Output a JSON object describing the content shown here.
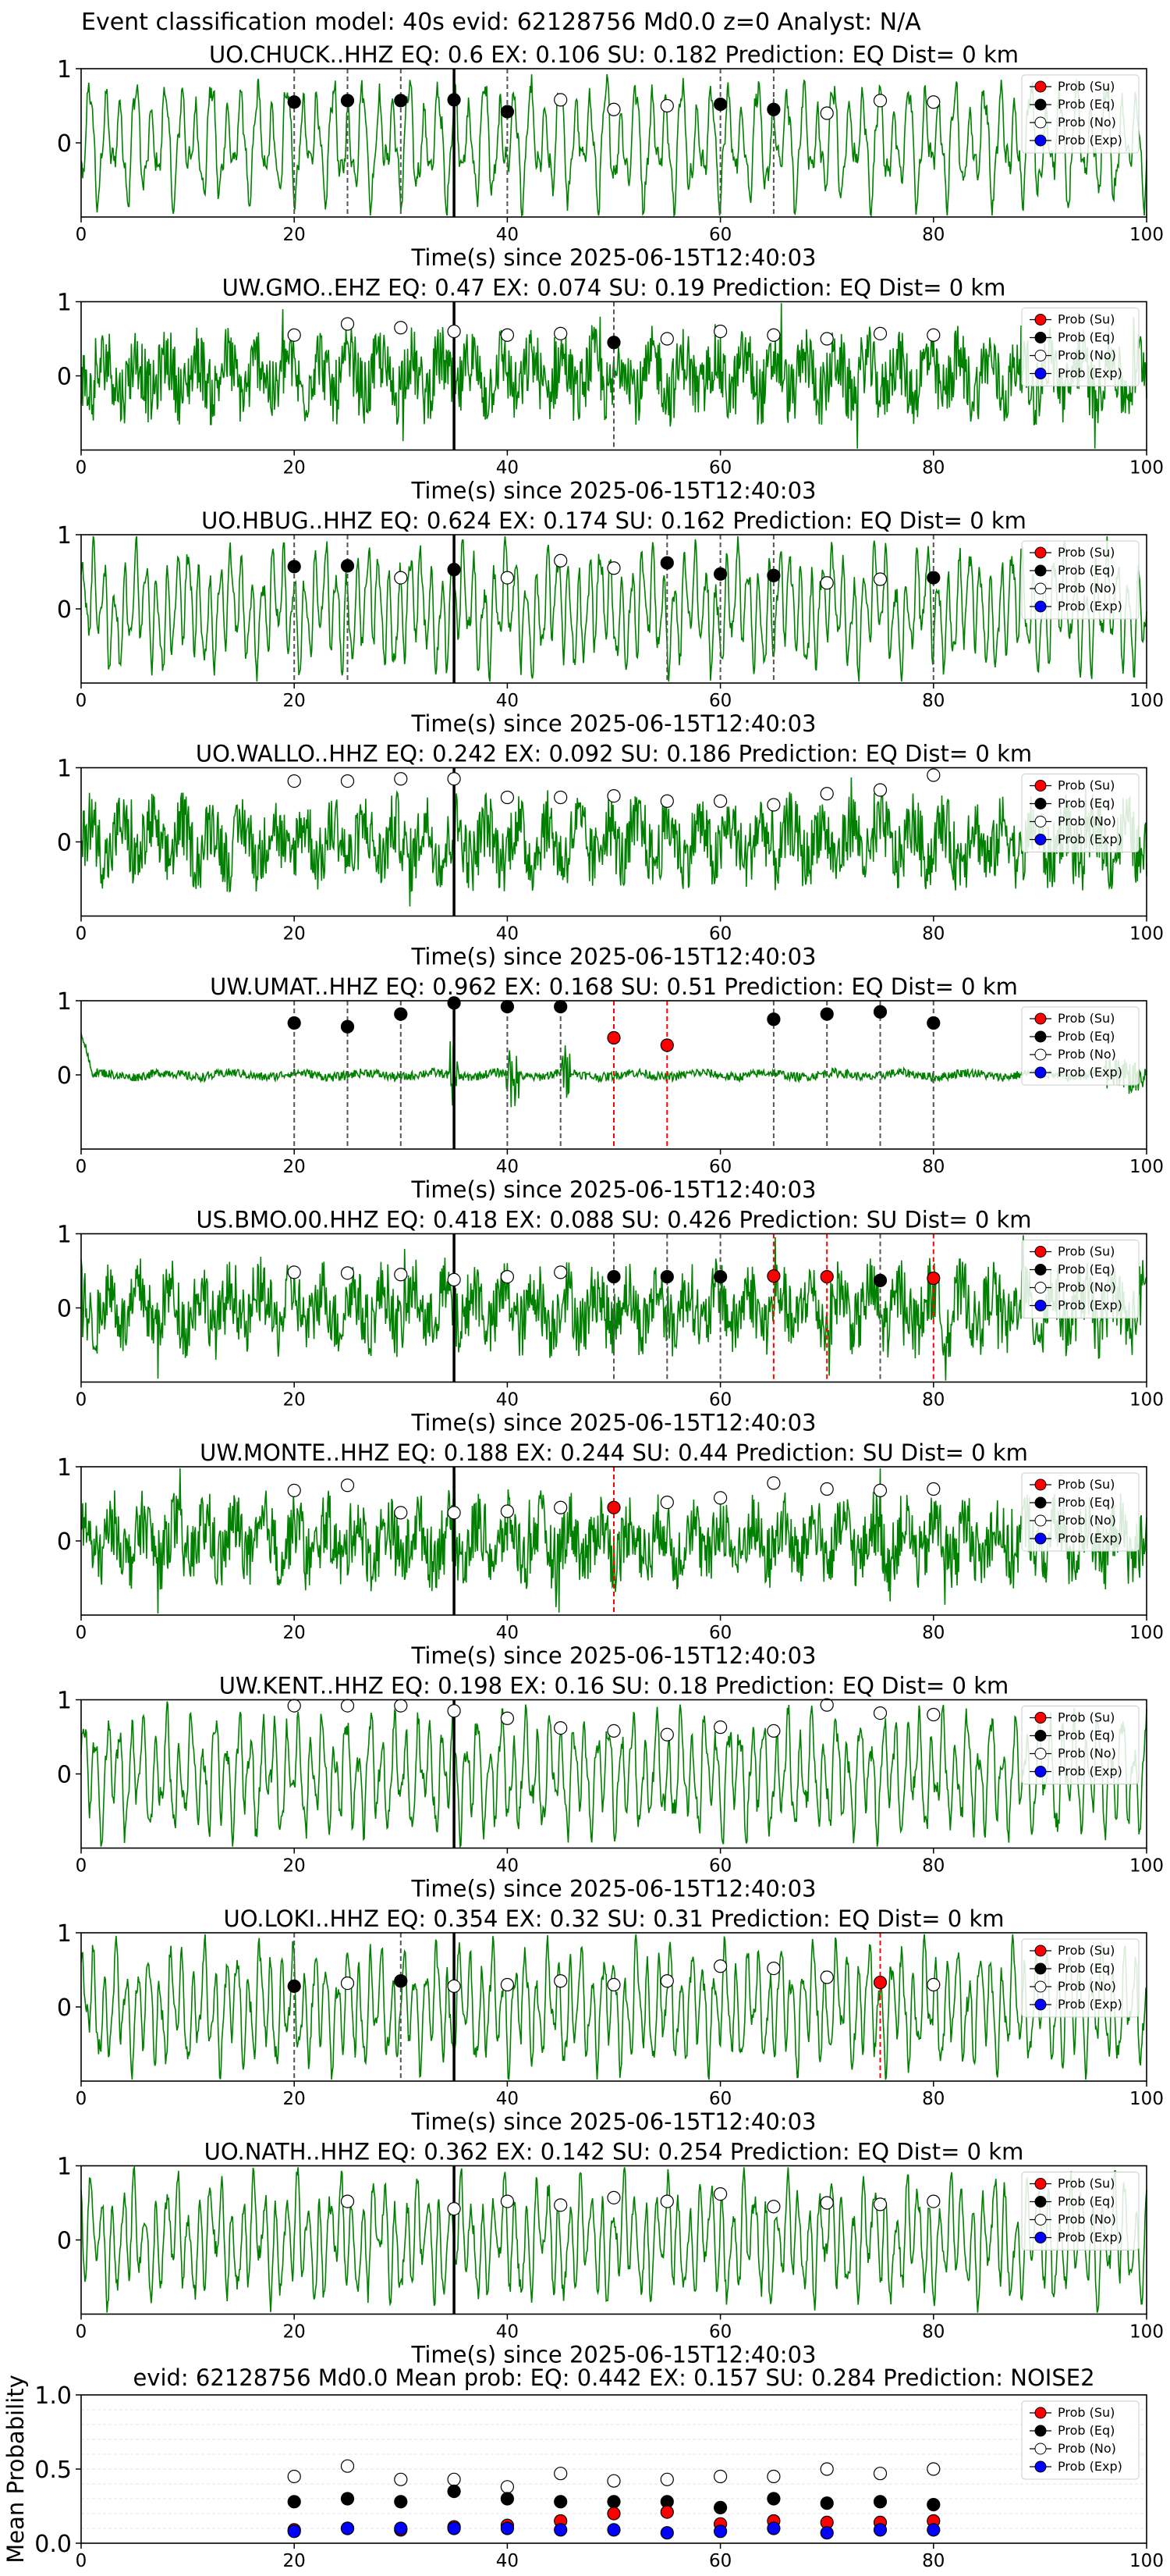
{
  "figure": {
    "suptitle": "Event classification model: 40s evid: 62128756 Md0.0 z=0 Analyst: N/A"
  },
  "legend_labels": [
    "Prob (Su)",
    "Prob (Eq)",
    "Prob (No)",
    "Prob (Exp)"
  ],
  "colors": {
    "waveform": "#008000",
    "su": "#ff0000",
    "eq": "#000000",
    "no": "#ffffff",
    "exp": "#0000ff",
    "pick_line": "#000000",
    "eq_vline": "#555555",
    "su_vline": "#ff0000"
  },
  "chart_data": [
    {
      "type": "line",
      "title": "UO.CHUCK..HHZ   EQ: 0.6  EX: 0.106  SU: 0.182   Prediction: EQ    Dist= 0 km",
      "xlabel": "Time(s) since 2025-06-15T12:40:03",
      "xlim": [
        0,
        100
      ],
      "ylim": [
        -1,
        1
      ],
      "xticks": [
        0,
        20,
        40,
        60,
        80,
        100
      ],
      "yticks": [
        0,
        1
      ],
      "pick_time": 35,
      "waveform_style": "oscillatory",
      "eq_lines": [
        20,
        25,
        30,
        40,
        60,
        65
      ],
      "su_lines": [],
      "markers": [
        {
          "x": 20,
          "y": 0.55,
          "cls": "eq"
        },
        {
          "x": 25,
          "y": 0.57,
          "cls": "eq"
        },
        {
          "x": 30,
          "y": 0.57,
          "cls": "eq"
        },
        {
          "x": 35,
          "y": 0.58,
          "cls": "eq"
        },
        {
          "x": 40,
          "y": 0.42,
          "cls": "eq"
        },
        {
          "x": 45,
          "y": 0.58,
          "cls": "no"
        },
        {
          "x": 50,
          "y": 0.45,
          "cls": "no"
        },
        {
          "x": 55,
          "y": 0.5,
          "cls": "no"
        },
        {
          "x": 60,
          "y": 0.52,
          "cls": "eq"
        },
        {
          "x": 65,
          "y": 0.45,
          "cls": "eq"
        },
        {
          "x": 70,
          "y": 0.4,
          "cls": "no"
        },
        {
          "x": 75,
          "y": 0.57,
          "cls": "no"
        },
        {
          "x": 80,
          "y": 0.55,
          "cls": "no"
        }
      ],
      "legend": true
    },
    {
      "type": "line",
      "title": "UW.GMO..EHZ   EQ: 0.47  EX: 0.074  SU: 0.19   Prediction: EQ    Dist= 0 km",
      "xlabel": "Time(s) since 2025-06-15T12:40:03",
      "xlim": [
        0,
        100
      ],
      "ylim": [
        -1,
        1
      ],
      "xticks": [
        0,
        20,
        40,
        60,
        80,
        100
      ],
      "yticks": [
        0,
        1
      ],
      "pick_time": 35,
      "waveform_style": "noisy",
      "eq_lines": [
        50
      ],
      "su_lines": [],
      "markers": [
        {
          "x": 20,
          "y": 0.55,
          "cls": "no"
        },
        {
          "x": 25,
          "y": 0.7,
          "cls": "no"
        },
        {
          "x": 30,
          "y": 0.65,
          "cls": "no"
        },
        {
          "x": 35,
          "y": 0.6,
          "cls": "no"
        },
        {
          "x": 40,
          "y": 0.55,
          "cls": "no"
        },
        {
          "x": 45,
          "y": 0.57,
          "cls": "no"
        },
        {
          "x": 50,
          "y": 0.45,
          "cls": "eq"
        },
        {
          "x": 55,
          "y": 0.5,
          "cls": "no"
        },
        {
          "x": 60,
          "y": 0.6,
          "cls": "no"
        },
        {
          "x": 65,
          "y": 0.55,
          "cls": "no"
        },
        {
          "x": 70,
          "y": 0.5,
          "cls": "no"
        },
        {
          "x": 75,
          "y": 0.57,
          "cls": "no"
        },
        {
          "x": 80,
          "y": 0.55,
          "cls": "no"
        }
      ],
      "legend": true
    },
    {
      "type": "line",
      "title": "UO.HBUG..HHZ   EQ: 0.624  EX: 0.174  SU: 0.162   Prediction: EQ    Dist= 0 km",
      "xlabel": "Time(s) since 2025-06-15T12:40:03",
      "xlim": [
        0,
        100
      ],
      "ylim": [
        -1,
        1
      ],
      "xticks": [
        0,
        20,
        40,
        60,
        80,
        100
      ],
      "yticks": [
        0,
        1
      ],
      "pick_time": 35,
      "waveform_style": "oscillatory",
      "eq_lines": [
        20,
        25,
        55,
        60,
        65,
        80
      ],
      "su_lines": [],
      "markers": [
        {
          "x": 20,
          "y": 0.57,
          "cls": "eq"
        },
        {
          "x": 25,
          "y": 0.58,
          "cls": "eq"
        },
        {
          "x": 30,
          "y": 0.42,
          "cls": "no"
        },
        {
          "x": 35,
          "y": 0.53,
          "cls": "eq"
        },
        {
          "x": 40,
          "y": 0.42,
          "cls": "no"
        },
        {
          "x": 45,
          "y": 0.65,
          "cls": "no"
        },
        {
          "x": 50,
          "y": 0.55,
          "cls": "no"
        },
        {
          "x": 55,
          "y": 0.62,
          "cls": "eq"
        },
        {
          "x": 60,
          "y": 0.47,
          "cls": "eq"
        },
        {
          "x": 65,
          "y": 0.45,
          "cls": "eq"
        },
        {
          "x": 70,
          "y": 0.35,
          "cls": "no"
        },
        {
          "x": 75,
          "y": 0.4,
          "cls": "no"
        },
        {
          "x": 80,
          "y": 0.42,
          "cls": "eq"
        }
      ],
      "legend": true
    },
    {
      "type": "line",
      "title": "UO.WALLO..HHZ   EQ: 0.242  EX: 0.092  SU: 0.186   Prediction: EQ    Dist= 0 km",
      "xlabel": "Time(s) since 2025-06-15T12:40:03",
      "xlim": [
        0,
        100
      ],
      "ylim": [
        -1,
        1
      ],
      "xticks": [
        0,
        20,
        40,
        60,
        80,
        100
      ],
      "yticks": [
        0,
        1
      ],
      "pick_time": 35,
      "waveform_style": "noisy",
      "eq_lines": [],
      "su_lines": [],
      "markers": [
        {
          "x": 20,
          "y": 0.82,
          "cls": "no"
        },
        {
          "x": 25,
          "y": 0.82,
          "cls": "no"
        },
        {
          "x": 30,
          "y": 0.85,
          "cls": "no"
        },
        {
          "x": 35,
          "y": 0.85,
          "cls": "no"
        },
        {
          "x": 40,
          "y": 0.6,
          "cls": "no"
        },
        {
          "x": 45,
          "y": 0.6,
          "cls": "no"
        },
        {
          "x": 50,
          "y": 0.62,
          "cls": "no"
        },
        {
          "x": 55,
          "y": 0.55,
          "cls": "no"
        },
        {
          "x": 60,
          "y": 0.55,
          "cls": "no"
        },
        {
          "x": 65,
          "y": 0.5,
          "cls": "no"
        },
        {
          "x": 70,
          "y": 0.65,
          "cls": "no"
        },
        {
          "x": 75,
          "y": 0.7,
          "cls": "no"
        },
        {
          "x": 80,
          "y": 0.9,
          "cls": "no"
        }
      ],
      "legend": true
    },
    {
      "type": "line",
      "title": "UW.UMAT..HHZ   EQ: 0.962  EX: 0.168  SU: 0.51   Prediction: EQ    Dist= 0 km",
      "xlabel": "Time(s) since 2025-06-15T12:40:03",
      "xlim": [
        0,
        100
      ],
      "ylim": [
        -1,
        1
      ],
      "xticks": [
        0,
        20,
        40,
        60,
        80,
        100
      ],
      "yticks": [
        0,
        1
      ],
      "pick_time": 35,
      "waveform_style": "quiet",
      "eq_lines": [
        20,
        25,
        30,
        40,
        45,
        65,
        70,
        75,
        80
      ],
      "su_lines": [
        50,
        55
      ],
      "markers": [
        {
          "x": 20,
          "y": 0.7,
          "cls": "eq"
        },
        {
          "x": 25,
          "y": 0.65,
          "cls": "eq"
        },
        {
          "x": 30,
          "y": 0.82,
          "cls": "eq"
        },
        {
          "x": 35,
          "y": 0.97,
          "cls": "eq"
        },
        {
          "x": 40,
          "y": 0.92,
          "cls": "eq"
        },
        {
          "x": 45,
          "y": 0.92,
          "cls": "eq"
        },
        {
          "x": 50,
          "y": 0.5,
          "cls": "su"
        },
        {
          "x": 55,
          "y": 0.4,
          "cls": "su"
        },
        {
          "x": 65,
          "y": 0.75,
          "cls": "eq"
        },
        {
          "x": 70,
          "y": 0.82,
          "cls": "eq"
        },
        {
          "x": 75,
          "y": 0.85,
          "cls": "eq"
        },
        {
          "x": 80,
          "y": 0.7,
          "cls": "eq"
        }
      ],
      "legend": true
    },
    {
      "type": "line",
      "title": "US.BMO.00.HHZ   EQ: 0.418  EX: 0.088  SU: 0.426   Prediction: SU    Dist= 0 km",
      "xlabel": "Time(s) since 2025-06-15T12:40:03",
      "xlim": [
        0,
        100
      ],
      "ylim": [
        -1,
        1
      ],
      "xticks": [
        0,
        20,
        40,
        60,
        80,
        100
      ],
      "yticks": [
        0,
        1
      ],
      "pick_time": 35,
      "waveform_style": "noisy",
      "eq_lines": [
        50,
        55,
        60,
        75
      ],
      "su_lines": [
        65,
        70,
        80
      ],
      "markers": [
        {
          "x": 20,
          "y": 0.48,
          "cls": "no"
        },
        {
          "x": 25,
          "y": 0.47,
          "cls": "no"
        },
        {
          "x": 30,
          "y": 0.45,
          "cls": "no"
        },
        {
          "x": 35,
          "y": 0.38,
          "cls": "no"
        },
        {
          "x": 40,
          "y": 0.42,
          "cls": "no"
        },
        {
          "x": 45,
          "y": 0.48,
          "cls": "no"
        },
        {
          "x": 50,
          "y": 0.42,
          "cls": "eq"
        },
        {
          "x": 55,
          "y": 0.42,
          "cls": "eq"
        },
        {
          "x": 60,
          "y": 0.42,
          "cls": "eq"
        },
        {
          "x": 65,
          "y": 0.43,
          "cls": "su"
        },
        {
          "x": 70,
          "y": 0.42,
          "cls": "su"
        },
        {
          "x": 75,
          "y": 0.37,
          "cls": "eq"
        },
        {
          "x": 80,
          "y": 0.4,
          "cls": "su"
        }
      ],
      "legend": true
    },
    {
      "type": "line",
      "title": "UW.MONTE..HHZ   EQ: 0.188  EX: 0.244  SU: 0.44   Prediction: SU    Dist= 0 km",
      "xlabel": "Time(s) since 2025-06-15T12:40:03",
      "xlim": [
        0,
        100
      ],
      "ylim": [
        -1,
        1
      ],
      "xticks": [
        0,
        20,
        40,
        60,
        80,
        100
      ],
      "yticks": [
        0,
        1
      ],
      "pick_time": 35,
      "waveform_style": "noisy",
      "eq_lines": [],
      "su_lines": [
        50
      ],
      "markers": [
        {
          "x": 20,
          "y": 0.68,
          "cls": "no"
        },
        {
          "x": 25,
          "y": 0.75,
          "cls": "no"
        },
        {
          "x": 30,
          "y": 0.38,
          "cls": "no"
        },
        {
          "x": 35,
          "y": 0.38,
          "cls": "no"
        },
        {
          "x": 40,
          "y": 0.4,
          "cls": "no"
        },
        {
          "x": 45,
          "y": 0.45,
          "cls": "no"
        },
        {
          "x": 50,
          "y": 0.45,
          "cls": "su"
        },
        {
          "x": 55,
          "y": 0.52,
          "cls": "no"
        },
        {
          "x": 60,
          "y": 0.58,
          "cls": "no"
        },
        {
          "x": 65,
          "y": 0.78,
          "cls": "no"
        },
        {
          "x": 70,
          "y": 0.7,
          "cls": "no"
        },
        {
          "x": 75,
          "y": 0.68,
          "cls": "no"
        },
        {
          "x": 80,
          "y": 0.7,
          "cls": "no"
        }
      ],
      "legend": true
    },
    {
      "type": "line",
      "title": "UW.KENT..HHZ   EQ: 0.198  EX: 0.16  SU: 0.18   Prediction: EQ    Dist= 0 km",
      "xlabel": "Time(s) since 2025-06-15T12:40:03",
      "xlim": [
        0,
        100
      ],
      "ylim": [
        -1,
        1
      ],
      "xticks": [
        0,
        20,
        40,
        60,
        80,
        100
      ],
      "yticks": [
        0,
        1
      ],
      "pick_time": 35,
      "waveform_style": "oscillatory",
      "eq_lines": [],
      "su_lines": [],
      "markers": [
        {
          "x": 20,
          "y": 0.92,
          "cls": "no"
        },
        {
          "x": 25,
          "y": 0.92,
          "cls": "no"
        },
        {
          "x": 30,
          "y": 0.92,
          "cls": "no"
        },
        {
          "x": 35,
          "y": 0.85,
          "cls": "no"
        },
        {
          "x": 40,
          "y": 0.75,
          "cls": "no"
        },
        {
          "x": 45,
          "y": 0.62,
          "cls": "no"
        },
        {
          "x": 50,
          "y": 0.58,
          "cls": "no"
        },
        {
          "x": 55,
          "y": 0.53,
          "cls": "no"
        },
        {
          "x": 60,
          "y": 0.63,
          "cls": "no"
        },
        {
          "x": 65,
          "y": 0.58,
          "cls": "no"
        },
        {
          "x": 70,
          "y": 0.93,
          "cls": "no"
        },
        {
          "x": 75,
          "y": 0.82,
          "cls": "no"
        },
        {
          "x": 80,
          "y": 0.8,
          "cls": "no"
        }
      ],
      "legend": true
    },
    {
      "type": "line",
      "title": "UO.LOKI..HHZ   EQ: 0.354  EX: 0.32  SU: 0.31   Prediction: EQ    Dist= 0 km",
      "xlabel": "Time(s) since 2025-06-15T12:40:03",
      "xlim": [
        0,
        100
      ],
      "ylim": [
        -1,
        1
      ],
      "xticks": [
        0,
        20,
        40,
        60,
        80,
        100
      ],
      "yticks": [
        0,
        1
      ],
      "pick_time": 35,
      "waveform_style": "oscillatory",
      "eq_lines": [
        20,
        30
      ],
      "su_lines": [
        75
      ],
      "markers": [
        {
          "x": 20,
          "y": 0.28,
          "cls": "eq"
        },
        {
          "x": 25,
          "y": 0.32,
          "cls": "no"
        },
        {
          "x": 30,
          "y": 0.35,
          "cls": "eq"
        },
        {
          "x": 35,
          "y": 0.28,
          "cls": "no"
        },
        {
          "x": 40,
          "y": 0.3,
          "cls": "no"
        },
        {
          "x": 45,
          "y": 0.35,
          "cls": "no"
        },
        {
          "x": 50,
          "y": 0.3,
          "cls": "no"
        },
        {
          "x": 55,
          "y": 0.35,
          "cls": "no"
        },
        {
          "x": 60,
          "y": 0.55,
          "cls": "no"
        },
        {
          "x": 65,
          "y": 0.52,
          "cls": "no"
        },
        {
          "x": 70,
          "y": 0.4,
          "cls": "no"
        },
        {
          "x": 75,
          "y": 0.33,
          "cls": "su"
        },
        {
          "x": 80,
          "y": 0.3,
          "cls": "no"
        }
      ],
      "legend": true
    },
    {
      "type": "line",
      "title": "UO.NATH..HHZ   EQ: 0.362  EX: 0.142  SU: 0.254   Prediction: EQ    Dist= 0 km",
      "xlabel": "Time(s) since 2025-06-15T12:40:03",
      "xlim": [
        0,
        100
      ],
      "ylim": [
        -1,
        1
      ],
      "xticks": [
        0,
        20,
        40,
        60,
        80,
        100
      ],
      "yticks": [
        0,
        1
      ],
      "pick_time": 35,
      "waveform_style": "oscillatory",
      "eq_lines": [],
      "su_lines": [],
      "markers": [
        {
          "x": 25,
          "y": 0.52,
          "cls": "no"
        },
        {
          "x": 35,
          "y": 0.42,
          "cls": "no"
        },
        {
          "x": 40,
          "y": 0.52,
          "cls": "no"
        },
        {
          "x": 45,
          "y": 0.47,
          "cls": "no"
        },
        {
          "x": 50,
          "y": 0.57,
          "cls": "no"
        },
        {
          "x": 55,
          "y": 0.52,
          "cls": "no"
        },
        {
          "x": 60,
          "y": 0.62,
          "cls": "no"
        },
        {
          "x": 65,
          "y": 0.45,
          "cls": "no"
        },
        {
          "x": 70,
          "y": 0.5,
          "cls": "no"
        },
        {
          "x": 75,
          "y": 0.48,
          "cls": "no"
        },
        {
          "x": 80,
          "y": 0.52,
          "cls": "no"
        }
      ],
      "legend": true
    },
    {
      "type": "scatter",
      "title": "evid: 62128756  Md0.0   Mean prob:   EQ: 0.442  EX: 0.157  SU: 0.284   Prediction: NOISE2",
      "xlabel": "",
      "ylabel": "Mean Probability",
      "xlim": [
        0,
        100
      ],
      "ylim": [
        0,
        1
      ],
      "xticks": [
        0,
        20,
        40,
        60,
        80,
        100
      ],
      "yticks": [
        0.0,
        0.5,
        1.0
      ],
      "ytick_labels": [
        "0.0",
        "0.5",
        "1.0"
      ],
      "grid": true,
      "x": [
        20,
        25,
        30,
        35,
        40,
        45,
        50,
        55,
        60,
        65,
        70,
        75,
        80
      ],
      "series": [
        {
          "cls": "no",
          "values": [
            0.45,
            0.52,
            0.43,
            0.43,
            0.38,
            0.47,
            0.42,
            0.43,
            0.45,
            0.45,
            0.5,
            0.47,
            0.5
          ]
        },
        {
          "cls": "eq",
          "values": [
            0.28,
            0.3,
            0.28,
            0.35,
            0.3,
            0.28,
            0.28,
            0.28,
            0.24,
            0.3,
            0.27,
            0.28,
            0.26
          ]
        },
        {
          "cls": "su",
          "values": [
            0.09,
            0.1,
            0.09,
            0.11,
            0.12,
            0.15,
            0.2,
            0.21,
            0.13,
            0.15,
            0.14,
            0.14,
            0.15
          ]
        },
        {
          "cls": "exp",
          "values": [
            0.08,
            0.1,
            0.1,
            0.1,
            0.1,
            0.09,
            0.09,
            0.07,
            0.08,
            0.1,
            0.07,
            0.09,
            0.09
          ]
        }
      ],
      "legend": true
    }
  ]
}
